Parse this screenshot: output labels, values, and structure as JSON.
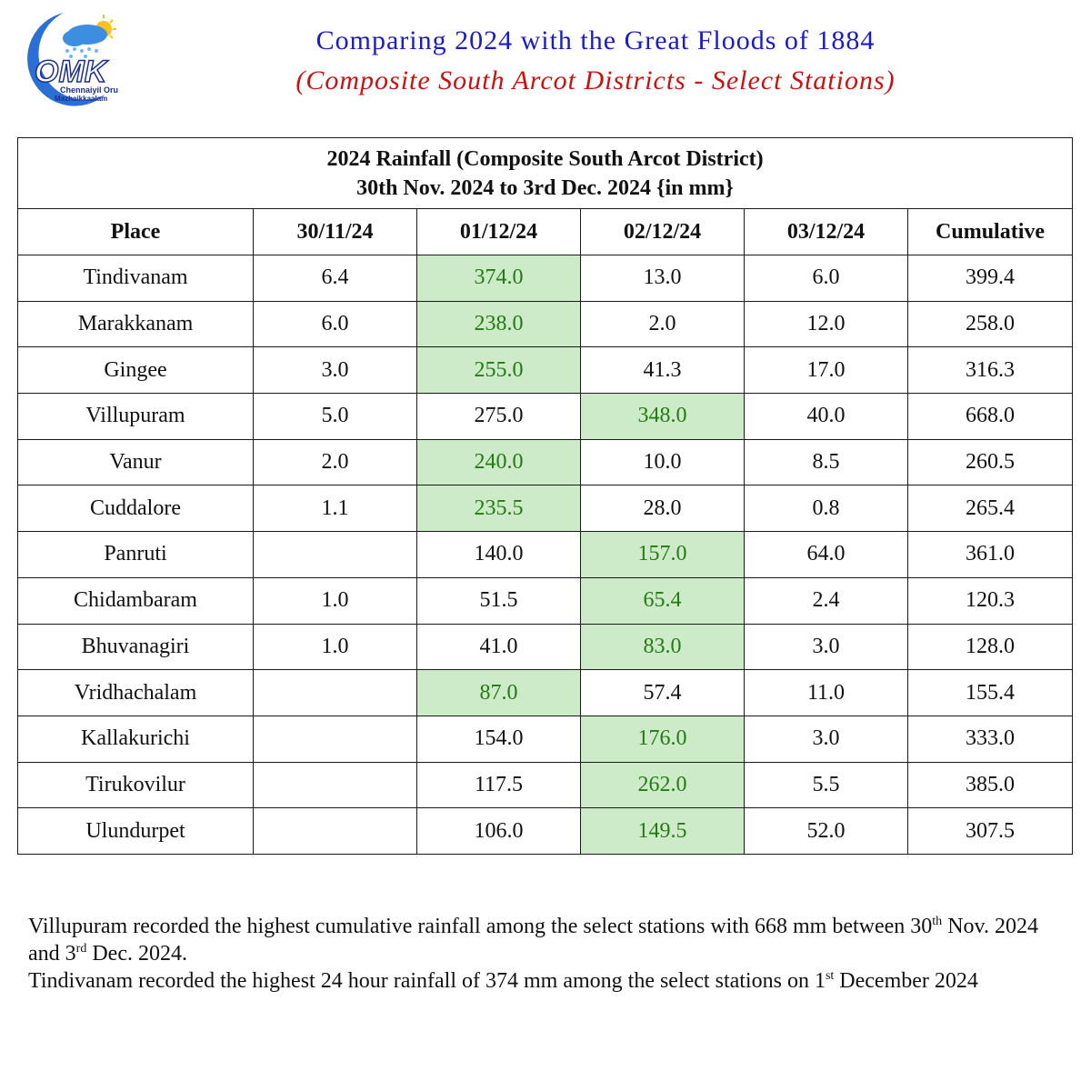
{
  "logo": {
    "letters": "OMK",
    "line1": "Chennaiyil Oru",
    "line2": "Mazhaikkaalam"
  },
  "title": {
    "line1": "Comparing 2024 with the Great Floods of 1884",
    "line2": "(Composite South Arcot Districts - Select Stations)"
  },
  "table": {
    "caption_line1": "2024 Rainfall (Composite South Arcot District)",
    "caption_line2": "30th Nov. 2024 to 3rd Dec. 2024 {in mm}",
    "columns": [
      "Place",
      "30/11/24",
      "01/12/24",
      "02/12/24",
      "03/12/24",
      "Cumulative"
    ],
    "highlight_color": "#cdebc9",
    "highlight_text_color": "#247a14",
    "rows": [
      {
        "cells": [
          "Tindivanam",
          "6.4",
          "374.0",
          "13.0",
          "6.0",
          "399.4"
        ],
        "highlight": 2
      },
      {
        "cells": [
          "Marakkanam",
          "6.0",
          "238.0",
          "2.0",
          "12.0",
          "258.0"
        ],
        "highlight": 2
      },
      {
        "cells": [
          "Gingee",
          "3.0",
          "255.0",
          "41.3",
          "17.0",
          "316.3"
        ],
        "highlight": 2
      },
      {
        "cells": [
          "Villupuram",
          "5.0",
          "275.0",
          "348.0",
          "40.0",
          "668.0"
        ],
        "highlight": 3
      },
      {
        "cells": [
          "Vanur",
          "2.0",
          "240.0",
          "10.0",
          "8.5",
          "260.5"
        ],
        "highlight": 2
      },
      {
        "cells": [
          "Cuddalore",
          "1.1",
          "235.5",
          "28.0",
          "0.8",
          "265.4"
        ],
        "highlight": 2
      },
      {
        "cells": [
          "Panruti",
          "",
          "140.0",
          "157.0",
          "64.0",
          "361.0"
        ],
        "highlight": 3
      },
      {
        "cells": [
          "Chidambaram",
          "1.0",
          "51.5",
          "65.4",
          "2.4",
          "120.3"
        ],
        "highlight": 3
      },
      {
        "cells": [
          "Bhuvanagiri",
          "1.0",
          "41.0",
          "83.0",
          "3.0",
          "128.0"
        ],
        "highlight": 3
      },
      {
        "cells": [
          "Vridhachalam",
          "",
          "87.0",
          "57.4",
          "11.0",
          "155.4"
        ],
        "highlight": 2
      },
      {
        "cells": [
          "Kallakurichi",
          "",
          "154.0",
          "176.0",
          "3.0",
          "333.0"
        ],
        "highlight": 3
      },
      {
        "cells": [
          "Tirukovilur",
          "",
          "117.5",
          "262.0",
          "5.5",
          "385.0"
        ],
        "highlight": 3
      },
      {
        "cells": [
          "Ulundurpet",
          "",
          "106.0",
          "149.5",
          "52.0",
          "307.5"
        ],
        "highlight": 3
      }
    ]
  },
  "notes": {
    "p1_a": "Villupuram recorded the highest cumulative rainfall among the select stations with 668 mm between 30",
    "p1_sup1": "th",
    "p1_b": " Nov. 2024 and 3",
    "p1_sup2": "rd",
    "p1_c": " Dec. 2024.",
    "p2_a": "Tindivanam recorded the highest 24 hour rainfall of 374 mm among the select stations on 1",
    "p2_sup": "st",
    "p2_b": " December 2024"
  }
}
